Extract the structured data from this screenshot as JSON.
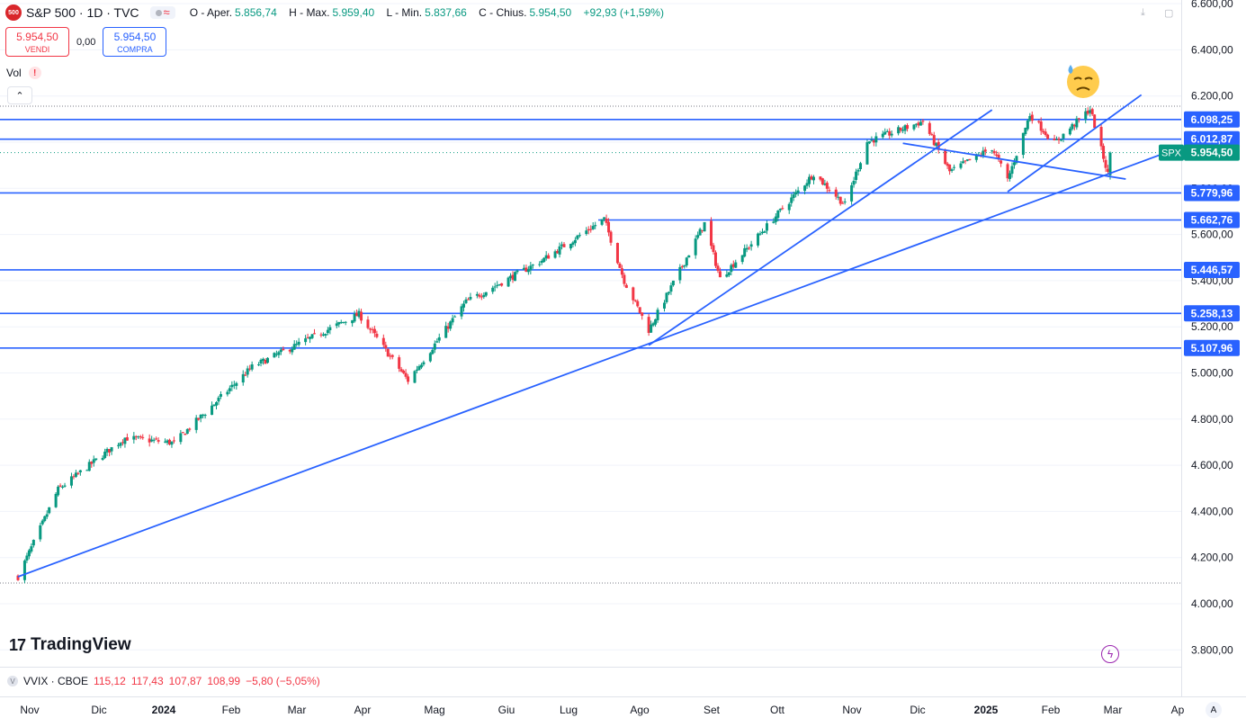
{
  "header": {
    "logo_text": "500",
    "symbol": "S&P 500 · 1D · TVC",
    "ohlc": [
      {
        "key": "O - Aper.",
        "value": "5.856,74"
      },
      {
        "key": "H - Max.",
        "value": "5.959,40"
      },
      {
        "key": "L - Min.",
        "value": "5.837,66"
      },
      {
        "key": "C - Chius.",
        "value": "5.954,50"
      }
    ],
    "change": "+92,93 (+1,59%)"
  },
  "trade": {
    "sell_price": "5.954,50",
    "sell_label": "VENDI",
    "spread": "0,00",
    "buy_price": "5.954,50",
    "buy_label": "COMPRA"
  },
  "vol_label": "Vol",
  "brand": "TradingView",
  "vvix": {
    "label": "VVIX · CBOE",
    "o": "115,12",
    "h": "117,43",
    "l": "107,87",
    "c": "108,99",
    "chg": "−5,80 (−5,05%)"
  },
  "time_labels": [
    {
      "label": "Nov",
      "bold": false
    },
    {
      "label": "Dic",
      "bold": false
    },
    {
      "label": "2024",
      "bold": true
    },
    {
      "label": "Feb",
      "bold": false
    },
    {
      "label": "Mar",
      "bold": false
    },
    {
      "label": "Apr",
      "bold": false
    },
    {
      "label": "Mag",
      "bold": false
    },
    {
      "label": "Giu",
      "bold": false
    },
    {
      "label": "Lug",
      "bold": false
    },
    {
      "label": "Ago",
      "bold": false
    },
    {
      "label": "Set",
      "bold": false
    },
    {
      "label": "Ott",
      "bold": false
    },
    {
      "label": "Nov",
      "bold": false
    },
    {
      "label": "Dic",
      "bold": false
    },
    {
      "label": "2025",
      "bold": true
    },
    {
      "label": "Feb",
      "bold": false
    },
    {
      "label": "Mar",
      "bold": false
    },
    {
      "label": "Ap",
      "bold": false
    }
  ],
  "auto_label": "A",
  "colors": {
    "up": "#089981",
    "down": "#f23645",
    "lines": "#2962ff",
    "accent": "#2962ff"
  },
  "chart_data": {
    "type": "candlestick",
    "price_axis": [
      "6.600,00",
      "6.400,00",
      "6.200,00",
      "6.000,00",
      "5.800,00",
      "5.600,00",
      "5.400,00",
      "5.200,00",
      "5.000,00",
      "4.800,00",
      "4.600,00",
      "4.400,00",
      "4.200,00",
      "4.000,00",
      "3.800,00"
    ],
    "ylim": [
      3800,
      6600
    ],
    "horizontal_levels": [
      {
        "value": 6098.25,
        "label": "6.098,25"
      },
      {
        "value": 6012.87,
        "label": "6.012,87"
      },
      {
        "value": 5779.96,
        "label": "5.779,96"
      },
      {
        "value": 5662.76,
        "label": "5.662,76"
      },
      {
        "value": 5446.57,
        "label": "5.446,57"
      },
      {
        "value": 5258.13,
        "label": "5.258,13"
      },
      {
        "value": 5107.96,
        "label": "5.107,96"
      }
    ],
    "last_price": {
      "symbol": "SPX",
      "value": 5954.5,
      "label": "5.954,50"
    },
    "anchors": [
      [
        "2023-10-27",
        4117
      ],
      [
        "2023-11-14",
        4495
      ],
      [
        "2023-12-14",
        4719
      ],
      [
        "2024-01-05",
        4697
      ],
      [
        "2024-02-09",
        5026
      ],
      [
        "2024-03-28",
        5254
      ],
      [
        "2024-04-19",
        4967
      ],
      [
        "2024-05-15",
        5308
      ],
      [
        "2024-06-18",
        5487
      ],
      [
        "2024-07-16",
        5667
      ],
      [
        "2024-07-25",
        5399
      ],
      [
        "2024-08-05",
        5186
      ],
      [
        "2024-08-30",
        5648
      ],
      [
        "2024-09-06",
        5408
      ],
      [
        "2024-10-18",
        5864
      ],
      [
        "2024-11-01",
        5729
      ],
      [
        "2024-11-11",
        6001
      ],
      [
        "2024-12-06",
        6090
      ],
      [
        "2024-12-18",
        5872
      ],
      [
        "2025-01-06",
        5975
      ],
      [
        "2025-01-13",
        5837
      ],
      [
        "2025-01-23",
        6119
      ],
      [
        "2025-02-03",
        5995
      ],
      [
        "2025-02-19",
        6144
      ],
      [
        "2025-02-27",
        5862
      ],
      [
        "2025-02-28",
        5954.5
      ]
    ],
    "last_candle": {
      "date": "2025-02-28",
      "open": 5856.74,
      "high": 5959.4,
      "low": 5837.66,
      "close": 5954.5
    },
    "trendlines": [
      {
        "from": [
          "2023-10-27",
          4117
        ],
        "to": [
          "2025-03-28",
          5965
        ]
      },
      {
        "from": [
          "2024-08-05",
          5120
        ],
        "to": [
          "2025-01-06",
          6140
        ]
      },
      {
        "from": [
          "2024-11-27",
          5995
        ],
        "to": [
          "2025-03-07",
          5840
        ]
      },
      {
        "from": [
          "2025-01-13",
          5785
        ],
        "to": [
          "2025-03-14",
          6205
        ]
      }
    ]
  }
}
